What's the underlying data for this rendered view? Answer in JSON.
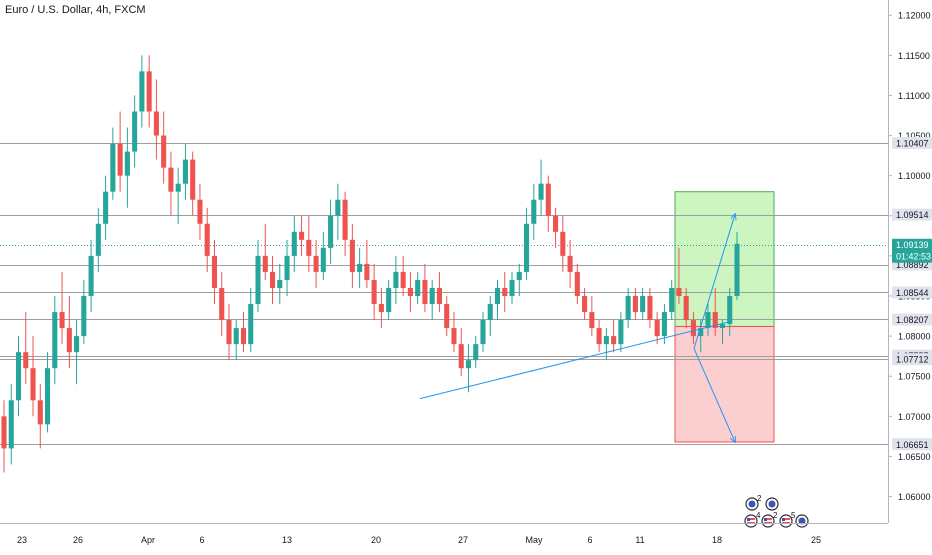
{
  "header": {
    "symbol_title": "Euro / U.S. Dollar, 4h, FXCM"
  },
  "colors": {
    "up": "#26a69a",
    "down": "#ef5350",
    "grid_line": "#9e9e9e",
    "trendline": "#2196f3",
    "target_zone": "#ccf5c0",
    "target_border": "#4caf50",
    "stop_zone": "#fbcfcf",
    "stop_border": "#ef5350",
    "price_label_bg": "#e0e3eb",
    "current_price_bg": "#26a69a",
    "axis_text": "#131722"
  },
  "chart_data": {
    "type": "candlestick",
    "title": "Euro / U.S. Dollar, 4h, FXCM",
    "x_ticks": [
      "23",
      "26",
      "Apr",
      "6",
      "13",
      "20",
      "27",
      "May",
      "6",
      "11",
      "18",
      "25"
    ],
    "y_ticks": [
      "1.12000",
      "1.11500",
      "1.11000",
      "1.10500",
      "1.10000",
      "1.09500",
      "1.09000",
      "1.08500",
      "1.08000",
      "1.07500",
      "1.07000",
      "1.06500",
      "1.06000"
    ],
    "y_tick_values": [
      1.12,
      1.115,
      1.11,
      1.105,
      1.1,
      1.095,
      1.09,
      1.085,
      1.08,
      1.075,
      1.07,
      1.065,
      1.06
    ],
    "ylim": [
      1.0567,
      1.1219
    ],
    "horizontal_levels": [
      {
        "label": "1.10407",
        "value": 1.10407
      },
      {
        "label": "1.09514",
        "value": 1.09514
      },
      {
        "label": "1.08892",
        "value": 1.08892
      },
      {
        "label": "1.08544",
        "value": 1.08544
      },
      {
        "label": "1.08207",
        "value": 1.08207
      },
      {
        "label": "1.07757",
        "value": 1.07757
      },
      {
        "label": "1.07712",
        "value": 1.07712
      },
      {
        "label": "1.06651",
        "value": 1.06651
      }
    ],
    "current_price": {
      "label": "1.09139",
      "value": 1.09139,
      "countdown": "01:42:53"
    },
    "trendline": {
      "from": {
        "day": "Apr 24",
        "price": 1.0722
      },
      "to": {
        "day": "May 18",
        "price": 1.0818
      }
    },
    "position": {
      "target": 1.098,
      "entry": 1.0812,
      "stop": 1.0668
    },
    "projections": [
      {
        "from_price": 1.0812,
        "to_price": 1.0952,
        "direction": "up"
      },
      {
        "from_price": 1.0812,
        "to_price": 1.0668,
        "direction": "down"
      }
    ],
    "candles": [
      [
        1.07,
        1.072,
        1.063,
        1.066
      ],
      [
        1.066,
        1.074,
        1.064,
        1.072
      ],
      [
        1.072,
        1.08,
        1.07,
        1.078
      ],
      [
        1.078,
        1.083,
        1.074,
        1.076
      ],
      [
        1.076,
        1.08,
        1.07,
        1.072
      ],
      [
        1.072,
        1.074,
        1.066,
        1.069
      ],
      [
        1.069,
        1.078,
        1.068,
        1.076
      ],
      [
        1.076,
        1.085,
        1.074,
        1.083
      ],
      [
        1.083,
        1.088,
        1.079,
        1.081
      ],
      [
        1.081,
        1.085,
        1.076,
        1.078
      ],
      [
        1.078,
        1.082,
        1.074,
        1.08
      ],
      [
        1.08,
        1.087,
        1.079,
        1.085
      ],
      [
        1.085,
        1.092,
        1.083,
        1.09
      ],
      [
        1.09,
        1.096,
        1.088,
        1.094
      ],
      [
        1.094,
        1.1,
        1.092,
        1.098
      ],
      [
        1.098,
        1.106,
        1.097,
        1.104
      ],
      [
        1.104,
        1.108,
        1.098,
        1.1
      ],
      [
        1.1,
        1.106,
        1.096,
        1.103
      ],
      [
        1.103,
        1.11,
        1.101,
        1.108
      ],
      [
        1.108,
        1.115,
        1.106,
        1.113
      ],
      [
        1.113,
        1.115,
        1.106,
        1.108
      ],
      [
        1.108,
        1.112,
        1.102,
        1.105
      ],
      [
        1.105,
        1.108,
        1.099,
        1.101
      ],
      [
        1.101,
        1.103,
        1.095,
        1.098
      ],
      [
        1.098,
        1.101,
        1.094,
        1.099
      ],
      [
        1.099,
        1.104,
        1.097,
        1.102
      ],
      [
        1.102,
        1.103,
        1.095,
        1.097
      ],
      [
        1.097,
        1.099,
        1.092,
        1.094
      ],
      [
        1.094,
        1.096,
        1.088,
        1.09
      ],
      [
        1.09,
        1.092,
        1.084,
        1.086
      ],
      [
        1.086,
        1.088,
        1.08,
        1.082
      ],
      [
        1.082,
        1.084,
        1.077,
        1.079
      ],
      [
        1.079,
        1.082,
        1.077,
        1.081
      ],
      [
        1.081,
        1.083,
        1.078,
        1.079
      ],
      [
        1.079,
        1.086,
        1.078,
        1.084
      ],
      [
        1.084,
        1.092,
        1.083,
        1.09
      ],
      [
        1.09,
        1.094,
        1.087,
        1.088
      ],
      [
        1.088,
        1.09,
        1.084,
        1.086
      ],
      [
        1.086,
        1.089,
        1.084,
        1.087
      ],
      [
        1.087,
        1.092,
        1.085,
        1.09
      ],
      [
        1.09,
        1.095,
        1.088,
        1.093
      ],
      [
        1.093,
        1.095,
        1.09,
        1.092
      ],
      [
        1.092,
        1.095,
        1.088,
        1.09
      ],
      [
        1.09,
        1.092,
        1.086,
        1.088
      ],
      [
        1.088,
        1.093,
        1.087,
        1.091
      ],
      [
        1.091,
        1.097,
        1.089,
        1.095
      ],
      [
        1.095,
        1.099,
        1.092,
        1.097
      ],
      [
        1.097,
        1.098,
        1.09,
        1.092
      ],
      [
        1.092,
        1.094,
        1.086,
        1.088
      ],
      [
        1.088,
        1.091,
        1.086,
        1.089
      ],
      [
        1.089,
        1.092,
        1.086,
        1.087
      ],
      [
        1.087,
        1.089,
        1.082,
        1.084
      ],
      [
        1.084,
        1.086,
        1.081,
        1.083
      ],
      [
        1.083,
        1.087,
        1.082,
        1.086
      ],
      [
        1.086,
        1.09,
        1.084,
        1.088
      ],
      [
        1.088,
        1.09,
        1.085,
        1.086
      ],
      [
        1.086,
        1.088,
        1.083,
        1.085
      ],
      [
        1.085,
        1.088,
        1.084,
        1.087
      ],
      [
        1.087,
        1.089,
        1.083,
        1.084
      ],
      [
        1.084,
        1.087,
        1.082,
        1.086
      ],
      [
        1.086,
        1.088,
        1.083,
        1.084
      ],
      [
        1.084,
        1.085,
        1.08,
        1.081
      ],
      [
        1.081,
        1.083,
        1.078,
        1.079
      ],
      [
        1.079,
        1.081,
        1.075,
        1.076
      ],
      [
        1.076,
        1.079,
        1.073,
        1.077
      ],
      [
        1.077,
        1.08,
        1.076,
        1.079
      ],
      [
        1.079,
        1.083,
        1.078,
        1.082
      ],
      [
        1.082,
        1.085,
        1.08,
        1.084
      ],
      [
        1.084,
        1.087,
        1.082,
        1.086
      ],
      [
        1.086,
        1.088,
        1.083,
        1.085
      ],
      [
        1.085,
        1.088,
        1.084,
        1.087
      ],
      [
        1.087,
        1.089,
        1.085,
        1.088
      ],
      [
        1.088,
        1.096,
        1.087,
        1.094
      ],
      [
        1.094,
        1.099,
        1.092,
        1.097
      ],
      [
        1.097,
        1.102,
        1.095,
        1.099
      ],
      [
        1.099,
        1.1,
        1.093,
        1.095
      ],
      [
        1.095,
        1.096,
        1.091,
        1.093
      ],
      [
        1.093,
        1.095,
        1.088,
        1.09
      ],
      [
        1.09,
        1.092,
        1.086,
        1.088
      ],
      [
        1.088,
        1.089,
        1.084,
        1.085
      ],
      [
        1.085,
        1.086,
        1.082,
        1.083
      ],
      [
        1.083,
        1.085,
        1.08,
        1.081
      ],
      [
        1.081,
        1.082,
        1.078,
        1.079
      ],
      [
        1.079,
        1.081,
        1.077,
        1.08
      ],
      [
        1.08,
        1.082,
        1.078,
        1.079
      ],
      [
        1.079,
        1.083,
        1.078,
        1.082
      ],
      [
        1.082,
        1.086,
        1.081,
        1.085
      ],
      [
        1.085,
        1.086,
        1.082,
        1.083
      ],
      [
        1.083,
        1.086,
        1.082,
        1.085
      ],
      [
        1.085,
        1.086,
        1.081,
        1.082
      ],
      [
        1.082,
        1.083,
        1.079,
        1.08
      ],
      [
        1.08,
        1.084,
        1.079,
        1.083
      ],
      [
        1.083,
        1.087,
        1.082,
        1.086
      ],
      [
        1.086,
        1.091,
        1.084,
        1.085
      ],
      [
        1.085,
        1.086,
        1.081,
        1.082
      ],
      [
        1.082,
        1.083,
        1.079,
        1.08
      ],
      [
        1.08,
        1.082,
        1.078,
        1.081
      ],
      [
        1.081,
        1.084,
        1.08,
        1.083
      ],
      [
        1.083,
        1.086,
        1.08,
        1.081
      ],
      [
        1.081,
        1.082,
        1.079,
        1.0815
      ],
      [
        1.0815,
        1.086,
        1.08,
        1.085
      ],
      [
        1.085,
        1.093,
        1.0845,
        1.0915
      ]
    ],
    "event_markers": [
      {
        "icon": "calendar-event-icon",
        "count": "2"
      },
      {
        "icon": "calendar-event-icon",
        "count": ""
      },
      {
        "icon": "us-flag-event-icon",
        "count": "4"
      },
      {
        "icon": "us-flag-event-icon",
        "count": "2"
      },
      {
        "icon": "us-flag-event-icon",
        "count": "5"
      },
      {
        "icon": "calendar-event-icon",
        "count": ""
      }
    ]
  }
}
